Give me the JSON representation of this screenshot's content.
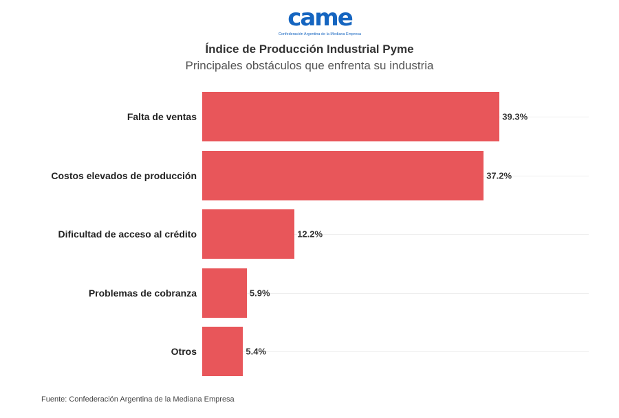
{
  "logo": {
    "mark": "came",
    "subtitle": "Confederación Argentina de la Mediana Empresa"
  },
  "chart_data": {
    "type": "bar",
    "orientation": "horizontal",
    "title": "Índice de Producción Industrial Pyme",
    "subtitle": "Principales obstáculos que enfrenta su industria",
    "categories": [
      "Falta de ventas",
      "Costos elevados de producción",
      "Dificultad de acceso al crédito",
      "Problemas de cobranza",
      "Otros"
    ],
    "values": [
      39.3,
      37.2,
      12.2,
      5.9,
      5.4
    ],
    "labels": [
      "39.3%",
      "37.2%",
      "12.2%",
      "5.9%",
      "5.4%"
    ],
    "unit": "%",
    "color": "#e8565a",
    "grid": true
  },
  "source": "Fuente: Confederación Argentina de la Mediana Empresa"
}
